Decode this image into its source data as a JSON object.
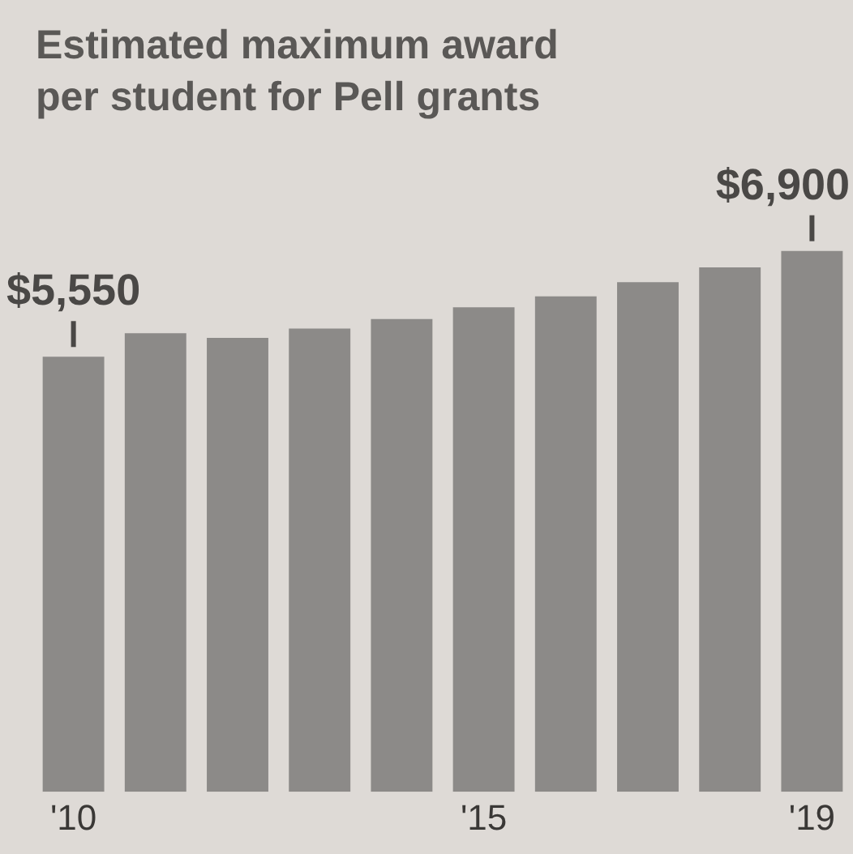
{
  "chart_data": {
    "type": "bar",
    "title": "Estimated maximum award per student for Pell grants",
    "categories": [
      "'10",
      null,
      null,
      null,
      null,
      "'15",
      null,
      null,
      null,
      "'19"
    ],
    "values": [
      5550,
      5850,
      5790,
      5910,
      6030,
      6180,
      6320,
      6500,
      6690,
      6900
    ],
    "value_labels": [
      "$5,550",
      null,
      null,
      null,
      null,
      null,
      null,
      null,
      null,
      "$6,900"
    ],
    "color": "#8c8a88",
    "tick_labels": "x",
    "grid": false,
    "legend": false
  }
}
